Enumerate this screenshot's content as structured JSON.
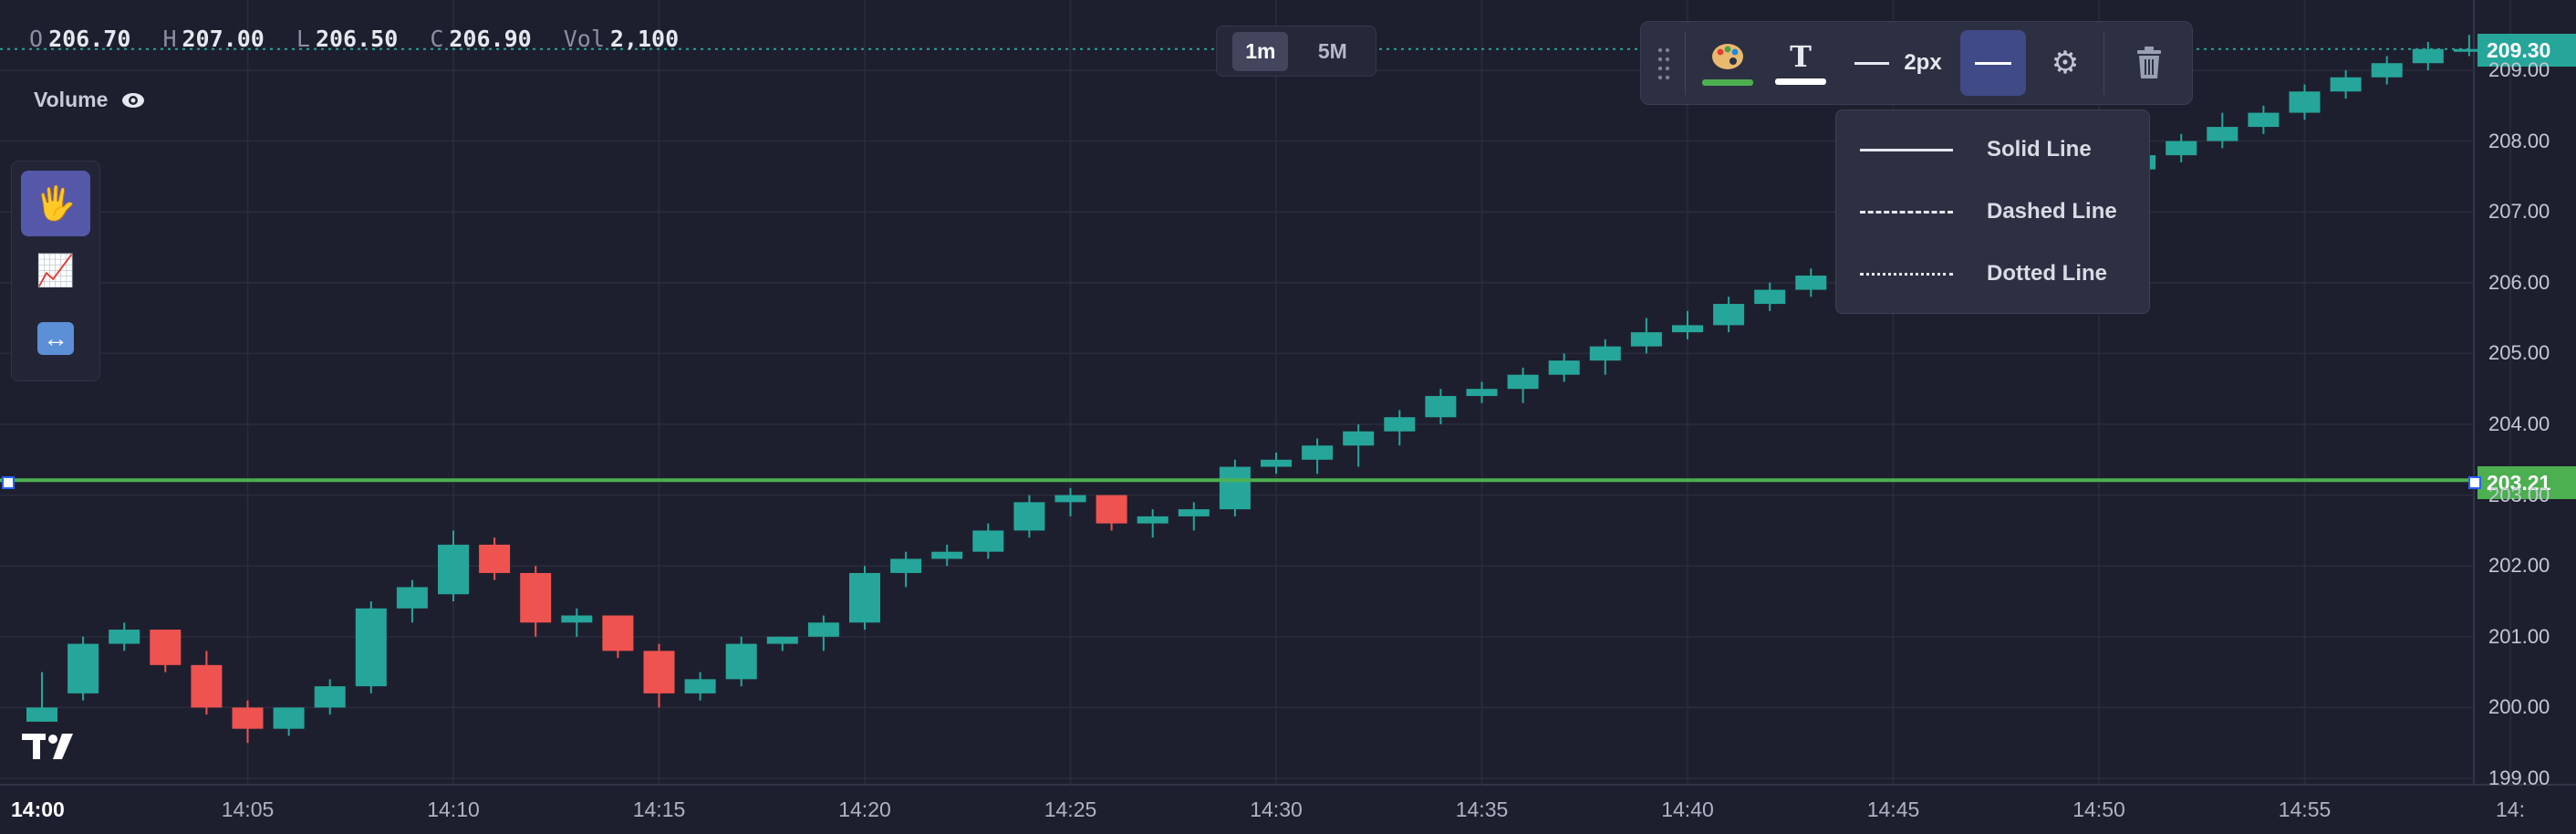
{
  "legend": {
    "o_key": "O",
    "o_val": "206.70",
    "h_key": "H",
    "h_val": "207.00",
    "l_key": "L",
    "l_val": "206.50",
    "c_key": "C",
    "c_val": "206.90",
    "vol_key": "Vol",
    "vol_val": "2,100"
  },
  "volume_label": "Volume",
  "timeframes": [
    {
      "label": "1m",
      "active": true
    },
    {
      "label": "5M",
      "active": false
    }
  ],
  "left_tools": [
    {
      "icon": "hand-icon",
      "glyph": "🖐",
      "active": true
    },
    {
      "icon": "trend-line-icon",
      "glyph": "📈",
      "active": false
    },
    {
      "icon": "measure-icon",
      "glyph": "↔",
      "active": false
    }
  ],
  "drawing_toolbar": {
    "color_icon": "palette-icon",
    "text_icon": "text-icon",
    "text_glyph": "T",
    "width_label": "2px",
    "line_style_icon": "line-style-icon",
    "settings_icon": "gear-icon",
    "delete_icon": "trash-icon",
    "line_color": "#4caf50"
  },
  "line_style_menu": [
    {
      "label": "Solid Line",
      "style": "solid"
    },
    {
      "label": "Dashed Line",
      "style": "dashed"
    },
    {
      "label": "Dotted Line",
      "style": "dotted"
    }
  ],
  "current_price": "209.30",
  "horizontal_line_price": "203.21",
  "colors": {
    "up": "#26a69a",
    "down": "#ef5350",
    "hline": "#4caf50",
    "current_price_bg": "#26a69a",
    "hline_label_bg": "#4caf50"
  },
  "chart_data": {
    "type": "candlestick",
    "timeframe": "1m",
    "x_start": "14:00",
    "x_tick_labels": [
      "14:00",
      "14:05",
      "14:10",
      "14:15",
      "14:20",
      "14:25",
      "14:30",
      "14:35",
      "14:40",
      "14:45",
      "14:50",
      "14:55",
      "14:"
    ],
    "y_tick_labels": [
      "199.00",
      "200.00",
      "201.00",
      "202.00",
      "203.00",
      "204.00",
      "205.00",
      "206.00",
      "207.00",
      "208.00",
      "209.00"
    ],
    "ylim": [
      199.0,
      209.8
    ],
    "grid": true,
    "horizontal_line": 203.21,
    "last_price": 209.3,
    "candles": [
      [
        199.8,
        200.5,
        199.8,
        200.0
      ],
      [
        200.2,
        201.0,
        200.1,
        200.9
      ],
      [
        200.9,
        201.2,
        200.8,
        201.1
      ],
      [
        201.1,
        201.1,
        200.5,
        200.6
      ],
      [
        200.6,
        200.8,
        199.9,
        200.0
      ],
      [
        200.0,
        200.1,
        199.5,
        199.7
      ],
      [
        199.7,
        200.0,
        199.6,
        200.0
      ],
      [
        200.0,
        200.4,
        199.9,
        200.3
      ],
      [
        200.3,
        201.5,
        200.2,
        201.4
      ],
      [
        201.4,
        201.8,
        201.2,
        201.7
      ],
      [
        201.6,
        202.5,
        201.5,
        202.3
      ],
      [
        202.3,
        202.4,
        201.8,
        201.9
      ],
      [
        201.9,
        202.0,
        201.0,
        201.2
      ],
      [
        201.2,
        201.4,
        201.0,
        201.3
      ],
      [
        201.3,
        201.3,
        200.7,
        200.8
      ],
      [
        200.8,
        200.9,
        200.0,
        200.2
      ],
      [
        200.2,
        200.5,
        200.1,
        200.4
      ],
      [
        200.4,
        201.0,
        200.3,
        200.9
      ],
      [
        200.9,
        201.0,
        200.8,
        201.0
      ],
      [
        201.0,
        201.3,
        200.8,
        201.2
      ],
      [
        201.2,
        202.0,
        201.1,
        201.9
      ],
      [
        201.9,
        202.2,
        201.7,
        202.1
      ],
      [
        202.1,
        202.3,
        202.0,
        202.2
      ],
      [
        202.2,
        202.6,
        202.1,
        202.5
      ],
      [
        202.5,
        203.0,
        202.4,
        202.9
      ],
      [
        202.9,
        203.1,
        202.7,
        203.0
      ],
      [
        203.0,
        203.0,
        202.5,
        202.6
      ],
      [
        202.6,
        202.8,
        202.4,
        202.7
      ],
      [
        202.7,
        202.9,
        202.5,
        202.8
      ],
      [
        202.8,
        203.5,
        202.7,
        203.4
      ],
      [
        203.4,
        203.6,
        203.3,
        203.5
      ],
      [
        203.5,
        203.8,
        203.3,
        203.7
      ],
      [
        203.7,
        204.0,
        203.4,
        203.9
      ],
      [
        203.9,
        204.2,
        203.7,
        204.1
      ],
      [
        204.1,
        204.5,
        204.0,
        204.4
      ],
      [
        204.4,
        204.6,
        204.3,
        204.5
      ],
      [
        204.5,
        204.8,
        204.3,
        204.7
      ],
      [
        204.7,
        205.0,
        204.6,
        204.9
      ],
      [
        204.9,
        205.2,
        204.7,
        205.1
      ],
      [
        205.1,
        205.5,
        205.0,
        205.3
      ],
      [
        205.3,
        205.6,
        205.2,
        205.4
      ],
      [
        205.4,
        205.8,
        205.3,
        205.7
      ],
      [
        205.7,
        206.0,
        205.6,
        205.9
      ],
      [
        205.9,
        206.2,
        205.8,
        206.1
      ],
      [
        206.1,
        206.4,
        206.0,
        206.3
      ],
      [
        206.3,
        206.6,
        206.2,
        206.5
      ],
      [
        206.5,
        206.8,
        206.4,
        206.7
      ],
      [
        206.7,
        207.0,
        206.6,
        206.9
      ],
      [
        206.9,
        207.2,
        206.8,
        207.1
      ],
      [
        207.1,
        207.4,
        207.0,
        207.3
      ],
      [
        207.3,
        207.7,
        207.2,
        207.6
      ],
      [
        207.6,
        207.9,
        207.5,
        207.8
      ],
      [
        207.8,
        208.1,
        207.7,
        208.0
      ],
      [
        208.0,
        208.4,
        207.9,
        208.2
      ],
      [
        208.2,
        208.5,
        208.1,
        208.4
      ],
      [
        208.4,
        208.8,
        208.3,
        208.7
      ],
      [
        208.7,
        209.0,
        208.6,
        208.9
      ],
      [
        208.9,
        209.2,
        208.8,
        209.1
      ],
      [
        209.1,
        209.4,
        209.0,
        209.3
      ],
      [
        209.3,
        209.5,
        209.2,
        209.3
      ]
    ]
  }
}
